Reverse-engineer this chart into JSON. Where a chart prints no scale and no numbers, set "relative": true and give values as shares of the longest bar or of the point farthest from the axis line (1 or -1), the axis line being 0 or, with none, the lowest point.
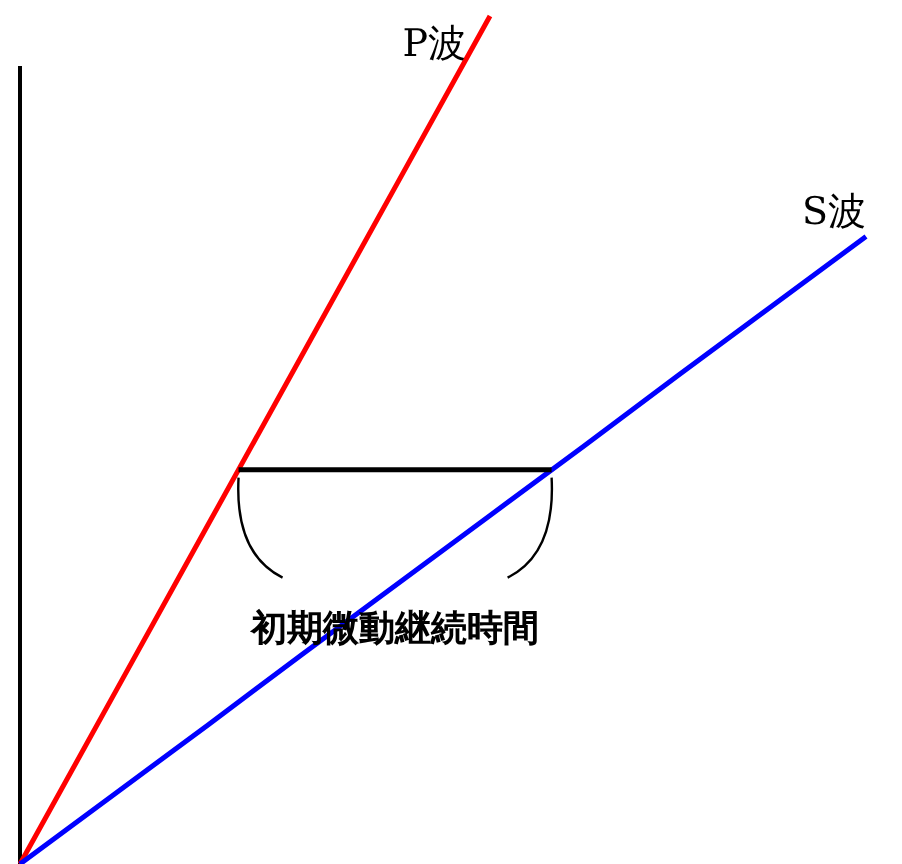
{
  "chart_data": {
    "type": "line",
    "relative": true,
    "categories": [
      null,
      null,
      null,
      null,
      null,
      null,
      null,
      null,
      null,
      null
    ],
    "series": [
      {
        "name": "P波",
        "color": "#ff0000",
        "values": [
          0,
          0.2,
          0.4,
          0.6,
          0.8,
          1,
          null,
          null,
          null,
          null
        ]
      },
      {
        "name": "S波",
        "color": "#0000ff",
        "values": [
          0,
          0.082,
          0.164,
          0.247,
          0.329,
          0.411,
          0.493,
          0.576,
          0.658,
          0.74
        ]
      }
    ],
    "annotations": [
      "初期微動継続時間"
    ]
  }
}
